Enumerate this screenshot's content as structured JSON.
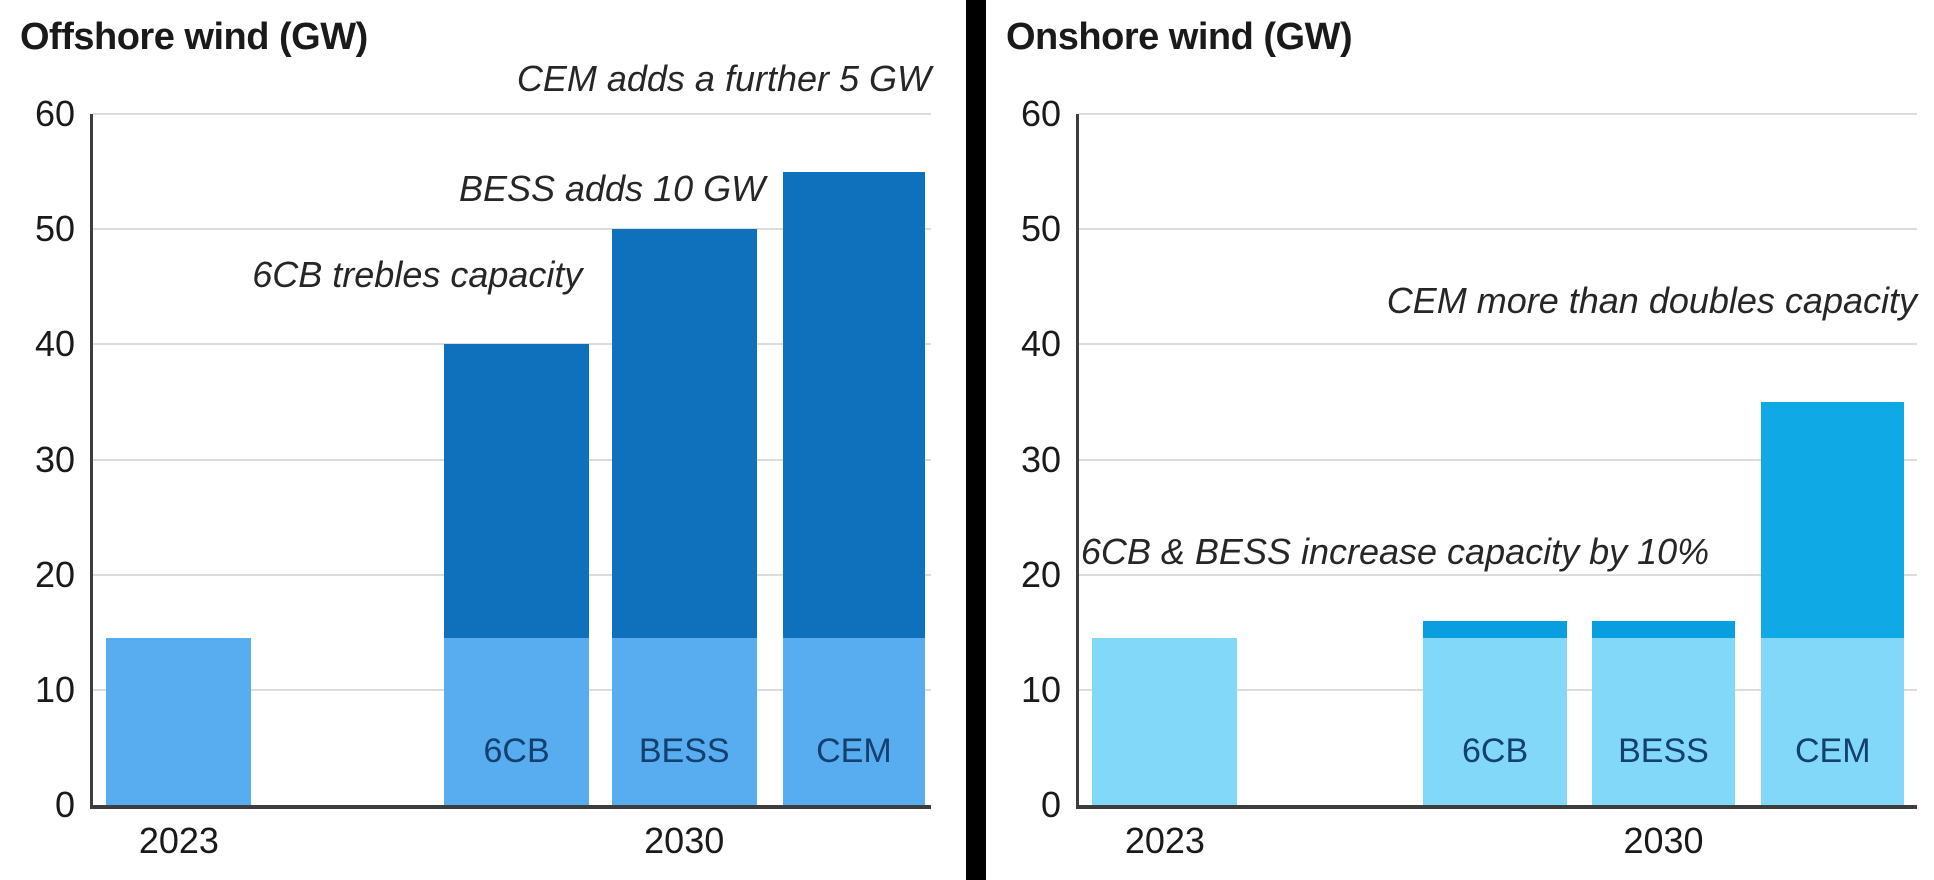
{
  "page": {
    "background": "#ffffff",
    "divider_color": "#000000"
  },
  "style": {
    "axis_color": "#3d3d3d",
    "grid_color": "#dcdcdc",
    "tick_label_color": "#1a1a1a",
    "title_color": "#1a1a1a",
    "annotation_color": "#262626",
    "bar_label_color": "#14406e"
  },
  "chart_data": [
    {
      "type": "bar",
      "title": "Offshore wind (GW)",
      "ylabel": "GW",
      "ylim": [
        0,
        60
      ],
      "yticks": [
        0,
        10,
        20,
        30,
        40,
        50,
        60
      ],
      "grid": true,
      "legend": "none",
      "categories": [
        "2023",
        "6CB",
        "BESS",
        "CEM"
      ],
      "x_axis_labels": [
        {
          "text": "2023",
          "anchor_bar": 0
        },
        {
          "text": "2030",
          "anchor_bar": 2
        }
      ],
      "bars": [
        {
          "name": "2023",
          "label": "",
          "total": 14.5,
          "segments": [
            {
              "name": "2023 capacity",
              "value": 14.5,
              "color": "#58adf1"
            }
          ],
          "left_pct": 1.6,
          "width_pct": 17.3
        },
        {
          "name": "6CB",
          "label": "6CB",
          "total": 40,
          "segments": [
            {
              "name": "2023 capacity",
              "value": 14.5,
              "color": "#58adf1"
            },
            {
              "name": "scenario addition",
              "value": 25.5,
              "color": "#0f70bb"
            }
          ],
          "left_pct": 41.9,
          "width_pct": 17.3
        },
        {
          "name": "BESS",
          "label": "BESS",
          "total": 50,
          "segments": [
            {
              "name": "2023 capacity",
              "value": 14.5,
              "color": "#58adf1"
            },
            {
              "name": "scenario addition",
              "value": 35.5,
              "color": "#0f70bb"
            }
          ],
          "left_pct": 61.9,
          "width_pct": 17.3
        },
        {
          "name": "CEM",
          "label": "CEM",
          "total": 55,
          "segments": [
            {
              "name": "2023 capacity",
              "value": 14.5,
              "color": "#58adf1"
            },
            {
              "name": "scenario addition",
              "value": 40.5,
              "color": "#0f70bb"
            }
          ],
          "left_pct": 82.3,
          "width_pct": 17.0
        }
      ],
      "annotations": [
        {
          "text": "CEM adds a further 5 GW",
          "gw": 63,
          "right_pct": 0
        },
        {
          "text": "BESS adds 10 GW",
          "gw": 53.5,
          "right_pct": 19.8
        },
        {
          "text": "6CB trebles capacity",
          "gw": 46,
          "right_pct": 41.6
        }
      ]
    },
    {
      "type": "bar",
      "title": "Onshore wind (GW)",
      "ylabel": "GW",
      "ylim": [
        0,
        60
      ],
      "yticks": [
        0,
        10,
        20,
        30,
        40,
        50,
        60
      ],
      "grid": true,
      "legend": "none",
      "categories": [
        "2023",
        "6CB",
        "BESS",
        "CEM"
      ],
      "x_axis_labels": [
        {
          "text": "2023",
          "anchor_bar": 0
        },
        {
          "text": "2030",
          "anchor_bar": 2
        }
      ],
      "bars": [
        {
          "name": "2023",
          "label": "",
          "total": 14.5,
          "segments": [
            {
              "name": "2023 capacity",
              "value": 14.5,
              "color": "#82d8f8"
            }
          ],
          "left_pct": 1.6,
          "width_pct": 17.3
        },
        {
          "name": "6CB",
          "label": "6CB",
          "total": 16,
          "segments": [
            {
              "name": "2023 capacity",
              "value": 14.5,
              "color": "#82d8f8"
            },
            {
              "name": "scenario addition",
              "value": 1.5,
              "color": "#089edf"
            }
          ],
          "left_pct": 41.1,
          "width_pct": 17.1
        },
        {
          "name": "BESS",
          "label": "BESS",
          "total": 16,
          "segments": [
            {
              "name": "2023 capacity",
              "value": 14.5,
              "color": "#82d8f8"
            },
            {
              "name": "scenario addition",
              "value": 1.5,
              "color": "#089edf"
            }
          ],
          "left_pct": 61.2,
          "width_pct": 17.1
        },
        {
          "name": "CEM",
          "label": "CEM",
          "total": 35,
          "segments": [
            {
              "name": "2023 capacity",
              "value": 14.5,
              "color": "#82d8f8"
            },
            {
              "name": "scenario addition",
              "value": 20.5,
              "color": "#0faae6"
            }
          ],
          "left_pct": 81.4,
          "width_pct": 17.1
        }
      ],
      "annotations": [
        {
          "text": "CEM more than doubles capacity",
          "gw": 43.8,
          "right_pct": 0
        },
        {
          "text": "6CB & BESS increase capacity by 10%",
          "gw": 22,
          "right_pct": 24.8
        }
      ]
    }
  ]
}
